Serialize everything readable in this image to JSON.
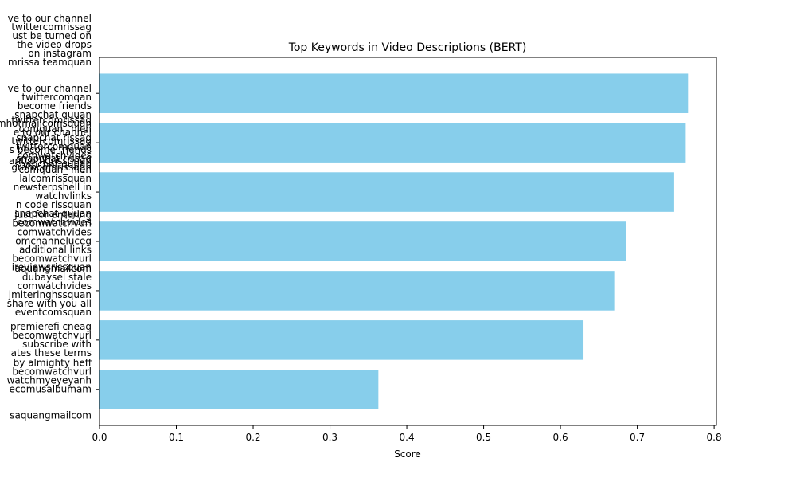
{
  "chart_data": {
    "type": "barh",
    "title": "Top Keywords in Video Descriptions (BERT)",
    "x_label": "Score",
    "categories": [
      "ve to our channel\ntwittercomrissag\nust be turned on\nthe video drops\non instagram\nmrissa teamquan\n\n\nve to our channel\ntwittercomqan\nbecome friends\nsnapchat quuan\ncomhotmailcomsquan\ne to our channel\ntwittercomrissag\ns become friends\nsnapchat rissag\ngramcomrissagh",
      "twittercomrissag\ncomquan_ hien\nsnapchat rissag\ntwittercomquan\ncomwatchvides\nsnapchat quuan",
      "antcomgrissquan\ncomquan_ hien\nlalcomrissquan\nnewsterpshell in\nwatchvlinks\nn code rissquan\nsnapchat quuan\ncomwatchvides",
      "just for entering\nbecomwatchvurl\ncomwatchvides\nomchanneluceg\nadditional links\nbecomwatchvurl\nireviewsrissquan",
      "aquangmailcom\ndubaysel stale\ncomwatchvides\njmiteringhssquan\nshare with you all\neventcomsquan",
      "premierefi cneag\nbecomwatchvurl\nsubscribe with\nates these terms",
      "by almighty heff\nbecomwatchvurl\nwatchmyeyeyanh\necomusalbumam\n\n\nsaquangmailcom"
    ],
    "values": [
      0.766,
      0.763,
      0.748,
      0.685,
      0.67,
      0.63,
      0.363
    ],
    "color": "#87ceeb",
    "xlim": [
      0,
      0.803
    ],
    "xticks": [
      {
        "value": 0,
        "label": "0.0"
      },
      0.1,
      0.2,
      0.3,
      0.4,
      0.5,
      0.6,
      0.7,
      0.8
    ],
    "grid": false
  }
}
